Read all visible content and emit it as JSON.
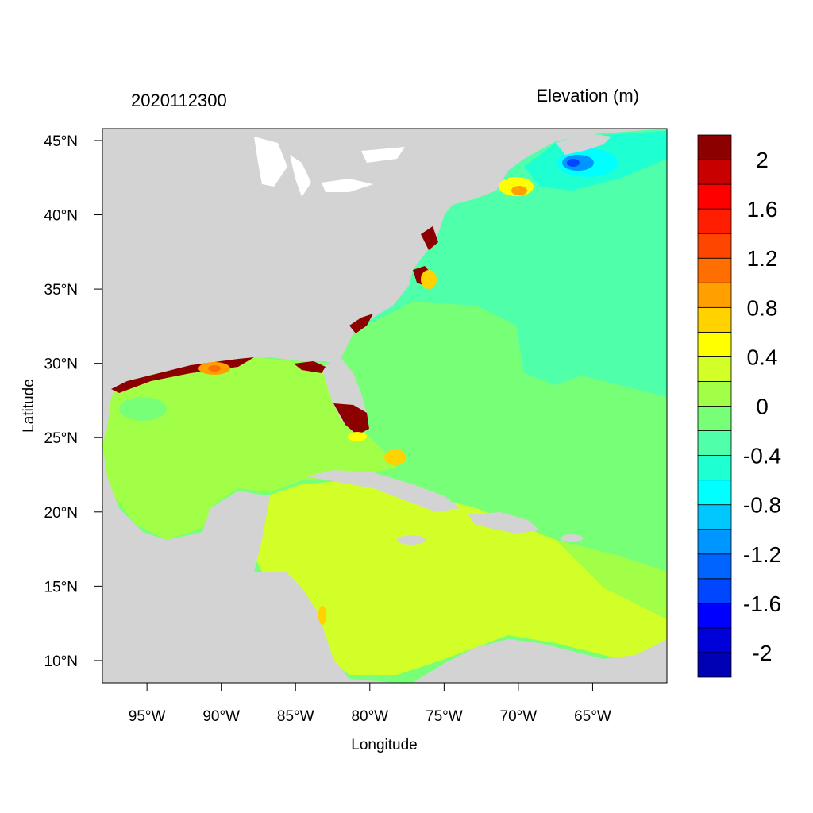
{
  "header": {
    "date_label": "2020112300",
    "variable_label": "Elevation (m)"
  },
  "axes": {
    "xlabel": "Longitude",
    "ylabel": "Latitude",
    "x_ticks": [
      {
        "value": -95,
        "label": "95°W"
      },
      {
        "value": -90,
        "label": "90°W"
      },
      {
        "value": -85,
        "label": "85°W"
      },
      {
        "value": -80,
        "label": "80°W"
      },
      {
        "value": -75,
        "label": "75°W"
      },
      {
        "value": -70,
        "label": "70°W"
      },
      {
        "value": -65,
        "label": "65°W"
      }
    ],
    "y_ticks": [
      {
        "value": 45,
        "label": "45°N"
      },
      {
        "value": 40,
        "label": "40°N"
      },
      {
        "value": 35,
        "label": "35°N"
      },
      {
        "value": 30,
        "label": "30°N"
      },
      {
        "value": 25,
        "label": "25°N"
      },
      {
        "value": 20,
        "label": "20°N"
      },
      {
        "value": 15,
        "label": "15°N"
      },
      {
        "value": 10,
        "label": "10°N"
      }
    ],
    "lon_range": [
      -98,
      -60
    ],
    "lat_range": [
      8.5,
      45.8
    ]
  },
  "colorbar": {
    "colors": [
      "#0000b4",
      "#0000d8",
      "#0000ff",
      "#0046ff",
      "#0064ff",
      "#0096ff",
      "#00c8ff",
      "#00ffff",
      "#1effd2",
      "#50ffaa",
      "#78ff78",
      "#a0ff46",
      "#d2ff28",
      "#ffff00",
      "#ffd200",
      "#ffa000",
      "#ff6e00",
      "#ff4600",
      "#ff1e00",
      "#ff0000",
      "#c80000",
      "#8c0000"
    ],
    "labels": [
      {
        "text": "2",
        "between": 20
      },
      {
        "text": "1.6",
        "between": 18
      },
      {
        "text": "1.2",
        "between": 16
      },
      {
        "text": "0.8",
        "between": 14
      },
      {
        "text": "0.4",
        "between": 12
      },
      {
        "text": "0",
        "between": 10
      },
      {
        "text": "-0.4",
        "between": 8
      },
      {
        "text": "-0.8",
        "between": 6
      },
      {
        "text": "-1.2",
        "between": 4
      },
      {
        "text": "-1.6",
        "between": 2
      },
      {
        "text": "-2",
        "between": 0
      }
    ]
  },
  "colors": {
    "land": "#d3d3d3",
    "atlantic": "#78ff78",
    "atlantic_low": "#50ffaa",
    "gulf": "#a0ff46",
    "caribbean": "#d2ff28",
    "surge_high": "#8c0000"
  }
}
